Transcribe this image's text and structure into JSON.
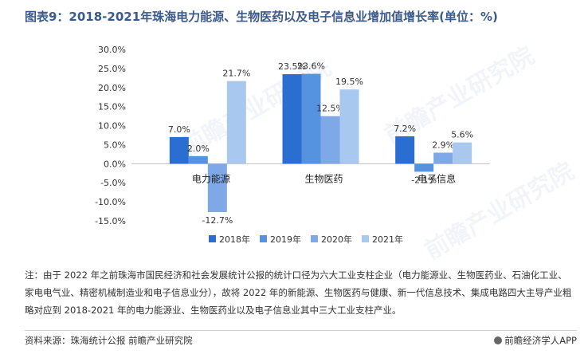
{
  "title": "图表9：2018-2021年珠海电力能源、生物医药以及电子信息业增加值增长率(单位：%)",
  "watermark": "前瞻产业研究院",
  "note": "注：由于 2022 年之前珠海市国民经济和社会发展统计公报的统计口径为六大工业支柱企业（电力能源业、生物医药业、石油化工业、家电电气业、精密机械制造业和电子信息业分），故将 2022 年的新能源、生物医药与健康、新一代信息技术、集成电路四大主导产业粗略对应到 2018-2021 年的电力能源业、生物医药业以及电子信息业其中三大工业支柱产业。",
  "source": "资料来源：珠海统计公报 前瞻产业研究院",
  "brand": "前瞻经济学人APP",
  "colors": {
    "title": "#3b5a8c"
  },
  "chart_data": {
    "type": "bar",
    "categories": [
      "电力能源",
      "生物医药",
      "电子信息"
    ],
    "series": [
      {
        "name": "2018年",
        "color": "#2a6ed1",
        "values": [
          7.0,
          23.5,
          7.2
        ],
        "labels": [
          "7.0%",
          "23.5%",
          "7.2%"
        ]
      },
      {
        "name": "2019年",
        "color": "#5592e0",
        "values": [
          2.0,
          23.6,
          -2.1
        ],
        "labels": [
          "2.0%",
          "23.6%",
          "-2.1%"
        ]
      },
      {
        "name": "2020年",
        "color": "#7ea9e6",
        "values": [
          -12.7,
          12.5,
          2.9
        ],
        "labels": [
          "-12.7%",
          "12.5%",
          "2.9%"
        ]
      },
      {
        "name": "2021年",
        "color": "#a9c8f0",
        "values": [
          21.7,
          19.5,
          5.6
        ],
        "labels": [
          "21.7%",
          "19.5%",
          "5.6%"
        ]
      }
    ],
    "ylim": [
      -15,
      30
    ],
    "yticks": [
      30,
      25,
      20,
      15,
      10,
      5,
      0,
      -5,
      -10,
      -15
    ],
    "ytick_labels": [
      "30.0%",
      "25.0%",
      "20.0%",
      "15.0%",
      "10.0%",
      "5.0%",
      "0.0%",
      "-5.0%",
      "-10.0%",
      "-15.0%"
    ],
    "legend_position": "bottom",
    "grid": false
  }
}
